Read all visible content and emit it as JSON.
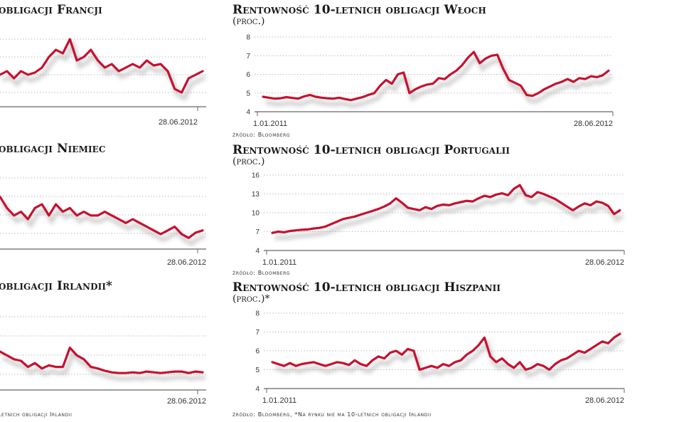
{
  "left_panels": {
    "francja": {
      "title": "obligacji Francji",
      "date_end": "28.06.2012"
    },
    "niemcy": {
      "title": "obligacji Niemiec",
      "date_end": "28.06.2012"
    },
    "irlandia": {
      "title": "obligacji Irlandii*",
      "date_end": "28.06.2012",
      "footnote": "letnich obligacji Irlandii"
    }
  },
  "chart_data": [
    {
      "type": "line",
      "title": "Rentowność 10-letnich obligacji Włoch",
      "subtitle": "(proc.)",
      "source": "źródło: Bloomberg",
      "ylim": [
        4,
        8
      ],
      "yticks": [
        4,
        5,
        6,
        7,
        8
      ],
      "date_start": "1.01.2011",
      "date_end": "28.06.2012",
      "series": [
        {
          "values": [
            4.8,
            4.75,
            4.7,
            4.72,
            4.78,
            4.74,
            4.7,
            4.82,
            4.9,
            4.8,
            4.75,
            4.72,
            4.7,
            4.75,
            4.68,
            4.62,
            4.7,
            4.78,
            4.9,
            5.0,
            5.4,
            5.7,
            5.5,
            6.0,
            6.1,
            5.0,
            5.2,
            5.35,
            5.45,
            5.5,
            5.8,
            5.75,
            6.0,
            6.2,
            6.5,
            6.9,
            7.2,
            6.6,
            6.85,
            7.0,
            7.05,
            6.3,
            5.7,
            5.55,
            5.4,
            4.9,
            4.85,
            5.0,
            5.2,
            5.35,
            5.5,
            5.6,
            5.75,
            5.6,
            5.8,
            5.75,
            5.9,
            5.85,
            5.95,
            6.2
          ]
        }
      ],
      "color": "#c8102e",
      "grid": true
    },
    {
      "type": "line",
      "title": "Rentowność 10-letnich obligacji Portugalii",
      "subtitle": "(proc.)",
      "source": "źródło: Bloomberg",
      "ylim": [
        4,
        16
      ],
      "yticks": [
        4,
        7,
        10,
        13,
        16
      ],
      "date_start": "1.01.2011",
      "date_end": "28.06.2012",
      "series": [
        {
          "values": [
            6.8,
            7.0,
            6.9,
            7.1,
            7.2,
            7.3,
            7.35,
            7.5,
            7.6,
            7.8,
            8.2,
            8.6,
            9.0,
            9.2,
            9.4,
            9.7,
            10.0,
            10.3,
            10.6,
            11.0,
            11.5,
            12.3,
            11.6,
            10.8,
            10.6,
            10.4,
            10.9,
            10.6,
            11.1,
            11.3,
            11.2,
            11.5,
            11.7,
            11.9,
            11.8,
            12.3,
            12.7,
            12.5,
            12.9,
            13.1,
            12.8,
            13.8,
            14.4,
            12.8,
            12.5,
            13.3,
            13.0,
            12.6,
            12.2,
            11.6,
            11.0,
            10.4,
            11.0,
            11.5,
            11.2,
            11.8,
            11.6,
            11.1,
            9.8,
            10.4
          ]
        }
      ],
      "color": "#c8102e",
      "grid": true
    },
    {
      "type": "line",
      "title": "Rentowność 10-letnich obligacji Hiszpanii",
      "subtitle": "(proc.)*",
      "source": "źródło: Bloomberg, *Na rynku nie ma 10-letnich obligacji Irlandii",
      "ylim": [
        4,
        8
      ],
      "yticks": [
        4,
        5,
        6,
        7,
        8
      ],
      "date_start": "1.01.2011",
      "date_end": "28.06.2012",
      "series": [
        {
          "values": [
            5.4,
            5.3,
            5.2,
            5.35,
            5.2,
            5.3,
            5.35,
            5.4,
            5.3,
            5.2,
            5.3,
            5.4,
            5.35,
            5.25,
            5.5,
            5.3,
            5.2,
            5.5,
            5.7,
            5.6,
            5.9,
            6.0,
            5.8,
            6.1,
            6.0,
            5.0,
            5.1,
            5.2,
            5.1,
            5.3,
            5.2,
            5.4,
            5.5,
            5.8,
            6.0,
            6.3,
            6.7,
            5.7,
            5.4,
            5.6,
            5.3,
            5.1,
            5.4,
            5.0,
            5.1,
            5.3,
            5.2,
            5.0,
            5.3,
            5.5,
            5.6,
            5.8,
            6.0,
            5.9,
            6.1,
            6.3,
            6.5,
            6.4,
            6.7,
            6.9
          ]
        }
      ],
      "color": "#c8102e",
      "grid": true
    }
  ]
}
